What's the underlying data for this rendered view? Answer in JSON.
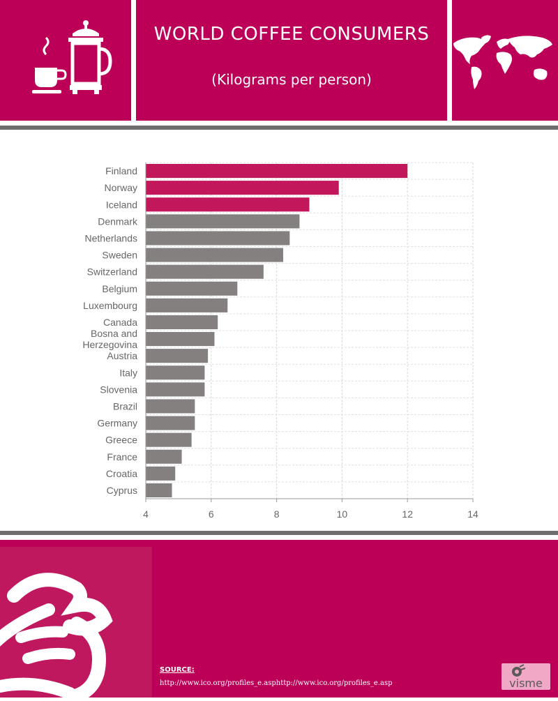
{
  "header": {
    "title": "WORLD COFFEE CONSUMERS",
    "subtitle": "(Kilograms per person)"
  },
  "footer": {
    "source_label": "SOURCE:",
    "source_url": "http://www.ico.org/profiles_e.asphttp://www.ico.org/profiles_e.asp",
    "logo_text": "visme"
  },
  "colors": {
    "brand": "#bc0058",
    "highlight_bar": "#c2185b",
    "default_bar": "#858080",
    "rule": "#6e6e6e"
  },
  "icons": {
    "left": "coffee-press-icon",
    "right": "world-map-icon",
    "footer": "hand-icon"
  },
  "chart_data": {
    "type": "bar",
    "orientation": "horizontal",
    "categories": [
      "Finland",
      "Norway",
      "Iceland",
      "Denmark",
      "Netherlands",
      "Sweden",
      "Switzerland",
      "Belgium",
      "Luxembourg",
      "Canada",
      "Bosna and Herzegovina",
      "Austria",
      "Italy",
      "Slovenia",
      "Brazil",
      "Germany",
      "Greece",
      "France",
      "Croatia",
      "Cyprus"
    ],
    "values": [
      12.0,
      9.9,
      9.0,
      8.7,
      8.4,
      8.2,
      7.6,
      6.8,
      6.5,
      6.2,
      6.1,
      5.9,
      5.8,
      5.8,
      5.5,
      5.5,
      5.4,
      5.1,
      4.9,
      4.8
    ],
    "highlighted": [
      "Finland",
      "Norway",
      "Iceland"
    ],
    "xlim": [
      4,
      14
    ],
    "xticks": [
      4,
      6,
      8,
      10,
      12,
      14
    ],
    "title": "",
    "xlabel": "",
    "ylabel": "",
    "grid": true
  }
}
